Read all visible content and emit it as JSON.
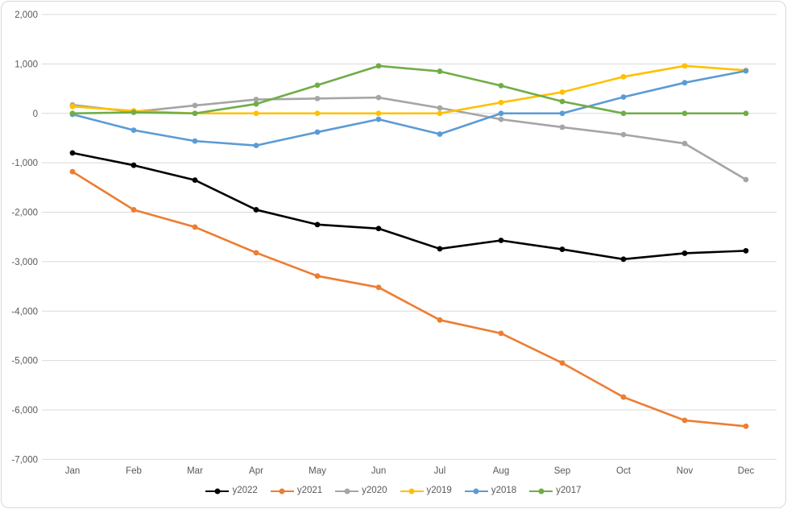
{
  "chart_data": {
    "type": "line",
    "categories": [
      "Jan",
      "Feb",
      "Mar",
      "Apr",
      "May",
      "Jun",
      "Jul",
      "Aug",
      "Sep",
      "Oct",
      "Nov",
      "Dec"
    ],
    "series": [
      {
        "name": "y2022",
        "color": "#000000",
        "values": [
          -800,
          -1050,
          -1350,
          -1950,
          -2250,
          -2330,
          -2740,
          -2570,
          -2750,
          -2950,
          -2830,
          -2780
        ]
      },
      {
        "name": "y2021",
        "color": "#ED7D31",
        "values": [
          -1180,
          -1950,
          -2300,
          -2820,
          -3290,
          -3520,
          -4180,
          -4450,
          -5050,
          -5740,
          -6210,
          -6330
        ]
      },
      {
        "name": "y2020",
        "color": "#A5A5A5",
        "values": [
          170,
          30,
          160,
          280,
          300,
          320,
          110,
          -120,
          -280,
          -430,
          -610,
          -1340
        ]
      },
      {
        "name": "y2019",
        "color": "#FFC000",
        "values": [
          140,
          50,
          0,
          0,
          0,
          0,
          0,
          220,
          430,
          740,
          960,
          870
        ]
      },
      {
        "name": "y2018",
        "color": "#5B9BD5",
        "values": [
          -20,
          -340,
          -560,
          -650,
          -380,
          -120,
          -420,
          0,
          0,
          330,
          620,
          860
        ]
      },
      {
        "name": "y2017",
        "color": "#70AD47",
        "values": [
          0,
          20,
          0,
          190,
          570,
          960,
          850,
          560,
          240,
          0,
          0,
          0
        ]
      }
    ],
    "title": "",
    "xlabel": "",
    "ylabel": "",
    "ylim": [
      -7000,
      2000
    ],
    "ytick_step": 1000,
    "ytick_labels": [
      "2,000",
      "1,000",
      "0",
      "-1,000",
      "-2,000",
      "-3,000",
      "-4,000",
      "-5,000",
      "-6,000",
      "-7,000"
    ],
    "grid": true,
    "legend_position": "bottom",
    "style": {
      "grid_color": "#D9D9D9",
      "axis_text_color": "#595959",
      "background": "#FFFFFF",
      "border_color": "#D9D9D9"
    }
  }
}
